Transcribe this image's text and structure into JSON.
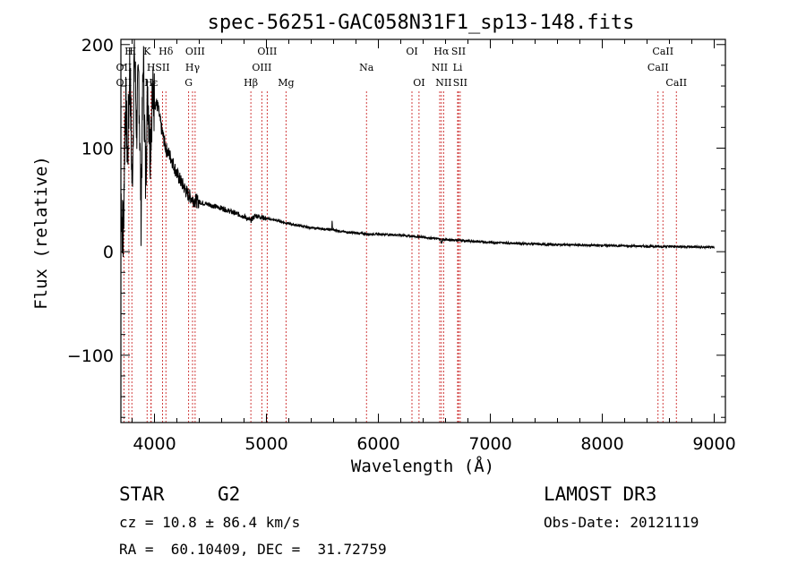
{
  "chart_data": {
    "type": "line",
    "title": "spec-56251-GAC058N31F1_sp13-148.fits",
    "xlabel": "Wavelength (Å)",
    "ylabel": "Flux (relative)",
    "xlim": [
      3700,
      9100
    ],
    "ylim": [
      -165,
      205
    ],
    "xticks": [
      4000,
      5000,
      6000,
      7000,
      8000,
      9000
    ],
    "yticks": [
      -100,
      0,
      100,
      200
    ],
    "xtick_labels": [
      "4000",
      "5000",
      "6000",
      "7000",
      "8000",
      "9000"
    ],
    "ytick_labels": [
      "−100",
      "0",
      "100",
      "200"
    ],
    "series": [
      {
        "name": "flux",
        "x": [
          3700,
          3720,
          3740,
          3760,
          3780,
          3800,
          3820,
          3840,
          3860,
          3880,
          3900,
          3920,
          3940,
          3960,
          3980,
          4000,
          4030,
          4060,
          4100,
          4150,
          4200,
          4250,
          4300,
          4350,
          4400,
          4500,
          4600,
          4700,
          4800,
          4860,
          4900,
          5000,
          5100,
          5200,
          5300,
          5400,
          5500,
          5600,
          5700,
          5800,
          5900,
          6000,
          6200,
          6400,
          6562,
          6700,
          7000,
          7500,
          8000,
          8500,
          8700,
          9000
        ],
        "y": [
          55,
          10,
          150,
          90,
          185,
          60,
          200,
          120,
          170,
          40,
          190,
          70,
          160,
          100,
          150,
          145,
          140,
          120,
          100,
          90,
          75,
          65,
          55,
          50,
          48,
          45,
          42,
          38,
          34,
          30,
          35,
          32,
          30,
          27,
          25,
          23,
          22,
          21,
          19,
          18,
          17,
          17,
          16,
          14,
          12,
          11,
          9,
          7,
          6,
          5,
          5,
          4
        ]
      }
    ],
    "lines": [
      {
        "label": "H",
        "wl": 3771,
        "row": 1
      },
      {
        "label": "OII",
        "wl": 3727,
        "row": 2
      },
      {
        "label": "OII",
        "wl": 3727,
        "row": 3
      },
      {
        "label": "H",
        "wl": 3798,
        "row": 1
      },
      {
        "label": "K",
        "wl": 3934,
        "row": 1
      },
      {
        "label": "H",
        "wl": 3969,
        "row": 2
      },
      {
        "label": "Hε",
        "wl": 3970,
        "row": 3
      },
      {
        "label": "Hδ",
        "wl": 4102,
        "row": 1
      },
      {
        "label": "SII",
        "wl": 4072,
        "row": 2
      },
      {
        "label": "OIII",
        "wl": 4363,
        "row": 1
      },
      {
        "label": "Hγ",
        "wl": 4340,
        "row": 2
      },
      {
        "label": "G",
        "wl": 4305,
        "row": 3
      },
      {
        "label": "Hβ",
        "wl": 4861,
        "row": 3
      },
      {
        "label": "OIII",
        "wl": 5007,
        "row": 1
      },
      {
        "label": "OIII",
        "wl": 4959,
        "row": 2
      },
      {
        "label": "Mg",
        "wl": 5175,
        "row": 3
      },
      {
        "label": "Na",
        "wl": 5894,
        "row": 2
      },
      {
        "label": "OI",
        "wl": 6300,
        "row": 1
      },
      {
        "label": "OI",
        "wl": 6363,
        "row": 3
      },
      {
        "label": "Hα",
        "wl": 6563,
        "row": 1
      },
      {
        "label": "NII",
        "wl": 6548,
        "row": 2
      },
      {
        "label": "NII",
        "wl": 6583,
        "row": 3
      },
      {
        "label": "SII",
        "wl": 6716,
        "row": 1
      },
      {
        "label": "Li",
        "wl": 6708,
        "row": 2
      },
      {
        "label": "SII",
        "wl": 6731,
        "row": 3
      },
      {
        "label": "CaII",
        "wl": 8542,
        "row": 1
      },
      {
        "label": "CaII",
        "wl": 8498,
        "row": 2
      },
      {
        "label": "CaII",
        "wl": 8662,
        "row": 3
      }
    ]
  },
  "info": {
    "object_class": "STAR",
    "subclass": "G2",
    "survey": "LAMOST DR3",
    "cz": "cz = 10.8 ± 86.4 km/s",
    "obs_date": "Obs-Date: 20121119",
    "coords": "RA =  60.10409, DEC =  31.72759"
  },
  "colors": {
    "line_marker": "#cc2a2a",
    "spectrum": "#000000"
  }
}
